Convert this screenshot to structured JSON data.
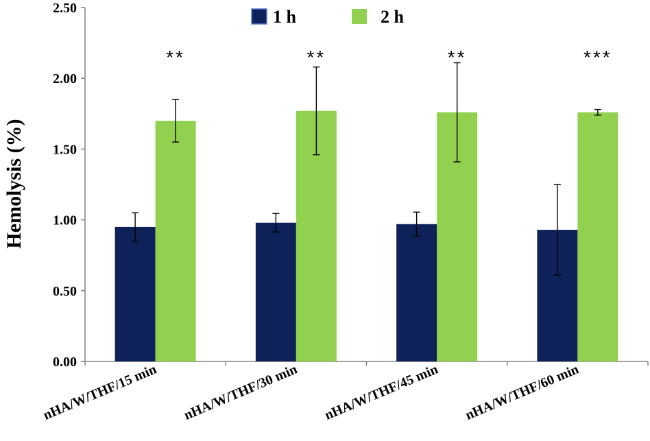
{
  "chart_data": {
    "type": "bar",
    "ylabel": "Hemolysis (%)",
    "xlabel": "",
    "ylim": [
      0,
      2.5
    ],
    "yticks": [
      "0.00",
      "0.50",
      "1.00",
      "1.50",
      "2.00",
      "2.50"
    ],
    "grid": false,
    "legend_position": "top-center",
    "categories": [
      "nHA/W/THF/15 min",
      "nHA/W/THF/30 min",
      "nHA/W/THF/45 min",
      "nHA/W/THF/60 min"
    ],
    "series": [
      {
        "name": "1 h",
        "color": "#0e2159",
        "values": [
          0.95,
          0.98,
          0.97,
          0.93
        ],
        "errors": [
          0.1,
          0.065,
          0.085,
          0.32
        ]
      },
      {
        "name": "2 h",
        "color": "#92d050",
        "values": [
          1.7,
          1.77,
          1.76,
          1.76
        ],
        "errors": [
          0.15,
          0.31,
          0.35,
          0.02
        ]
      }
    ],
    "annotations": [
      "**",
      "**",
      "**",
      "***"
    ]
  }
}
